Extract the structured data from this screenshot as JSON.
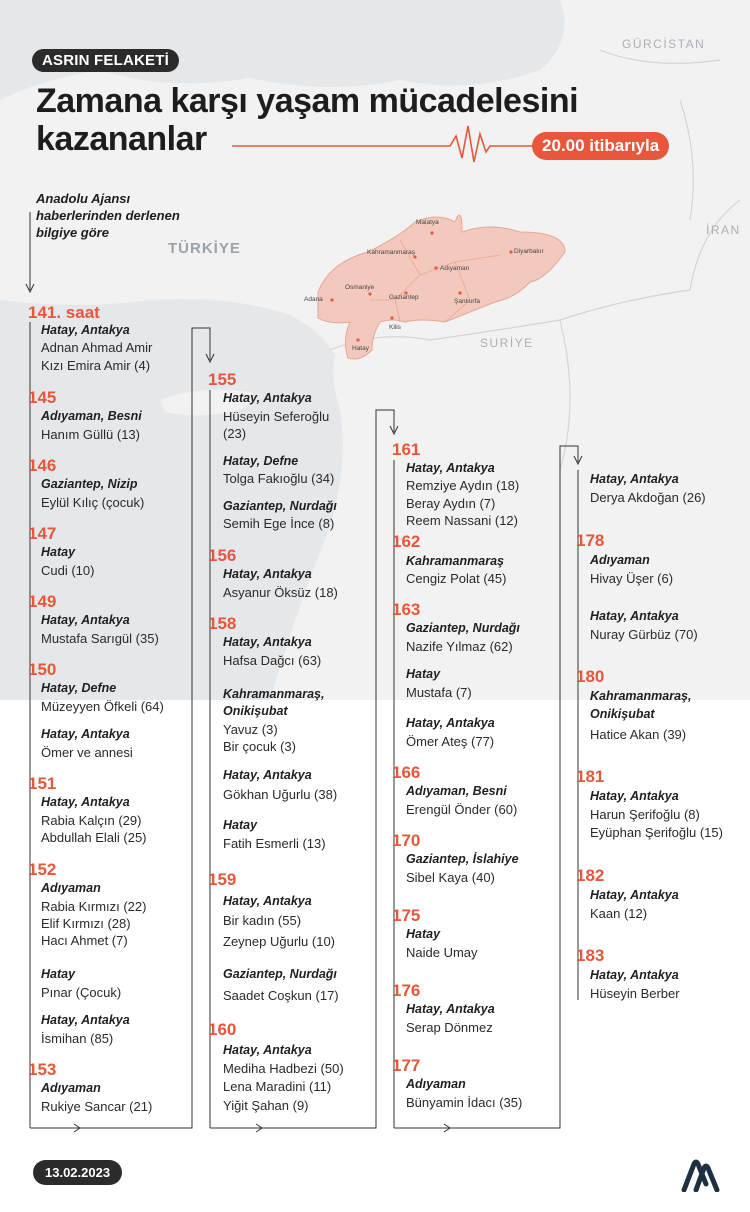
{
  "header": {
    "tag": "ASRIN FELAKETİ",
    "title_line1": "Zamana karşı yaşam mücadelesini",
    "title_line2": "kazananlar",
    "time_badge": "20.00 itibarıyla",
    "source_note": "Anadolu Ajansı haberlerinden derlenen bilgiye göre"
  },
  "map": {
    "countries": {
      "turkiye": "TÜRKİYE",
      "suriye": "SURİYE",
      "gurcistan": "GÜRCİSTAN",
      "iran": "İRAN"
    },
    "cities": [
      "Malatya",
      "Kahramanmaraş",
      "Diyarbakır",
      "Adıyaman",
      "Osmaniye",
      "Adana",
      "Gaziantep",
      "Şanlıurfa",
      "Kilis",
      "Hatay"
    ]
  },
  "timeline": {
    "c1": [
      {
        "hour": "141. saat",
        "groups": [
          {
            "loc": "Hatay, Antakya",
            "names": [
              "Adnan Ahmad Amir",
              "Kızı Emira Amir (4)"
            ]
          }
        ]
      },
      {
        "hour": "145",
        "groups": [
          {
            "loc": "Adıyaman, Besni",
            "names": [
              "Hanım Güllü (13)"
            ]
          }
        ]
      },
      {
        "hour": "146",
        "groups": [
          {
            "loc": "Gaziantep, Nizip",
            "names": [
              "Eylül Kılıç (çocuk)"
            ]
          }
        ]
      },
      {
        "hour": "147",
        "groups": [
          {
            "loc": "Hatay",
            "names": [
              "Cudi (10)"
            ]
          }
        ]
      },
      {
        "hour": "149",
        "groups": [
          {
            "loc": "Hatay, Antakya",
            "names": [
              "Mustafa Sarıgül (35)"
            ]
          }
        ]
      },
      {
        "hour": "150",
        "groups": [
          {
            "loc": "Hatay, Defne",
            "names": [
              "Müzeyyen Öfkeli (64)"
            ]
          },
          {
            "loc": "Hatay, Antakya",
            "names": [
              "Ömer ve annesi"
            ]
          }
        ]
      },
      {
        "hour": "151",
        "groups": [
          {
            "loc": "Hatay, Antakya",
            "names": [
              "Rabia Kalçın (29)",
              "Abdullah Elali (25)"
            ]
          }
        ]
      },
      {
        "hour": "152",
        "groups": [
          {
            "loc": "Adıyaman",
            "names": [
              "Rabia Kırmızı (22)",
              "Elif Kırmızı (28)",
              "Hacı Ahmet (7)"
            ]
          },
          {
            "loc": "Hatay",
            "names": [
              "Pınar (Çocuk)"
            ]
          },
          {
            "loc": "Hatay, Antakya",
            "names": [
              "İsmihan (85)"
            ]
          }
        ]
      },
      {
        "hour": "153",
        "groups": [
          {
            "loc": "Adıyaman",
            "names": [
              "Rukiye Sancar (21)"
            ]
          }
        ]
      }
    ],
    "c2": [
      {
        "hour": "155",
        "groups": [
          {
            "loc": "Hatay, Antakya",
            "names": [
              "Hüseyin Seferoğlu",
              "(23)"
            ]
          },
          {
            "loc": "Hatay, Defne",
            "names": [
              "Tolga Fakıoğlu (34)"
            ]
          },
          {
            "loc": "Gaziantep, Nurdağı",
            "names": [
              "Semih Ege İnce (8)"
            ]
          }
        ]
      },
      {
        "hour": "156",
        "groups": [
          {
            "loc": "Hatay, Antakya",
            "names": [
              "Asyanur Öksüz (18)"
            ]
          }
        ]
      },
      {
        "hour": "158",
        "groups": [
          {
            "loc": "Hatay, Antakya",
            "names": [
              "Hafsa Dağcı (63)"
            ]
          },
          {
            "loc": "Kahramanmaraş,",
            "loc2": "Onikişubat",
            "names": [
              "Yavuz (3)",
              "Bir çocuk (3)"
            ]
          },
          {
            "loc": "Hatay, Antakya",
            "names": [
              "Gökhan Uğurlu (38)"
            ]
          },
          {
            "loc": "Hatay",
            "names": [
              "Fatih Esmerli (13)"
            ]
          }
        ]
      },
      {
        "hour": "159",
        "groups": [
          {
            "loc": "Hatay, Antakya",
            "names": [
              "Bir kadın (55)",
              "Zeynep Uğurlu (10)"
            ]
          },
          {
            "loc": "Gaziantep, Nurdağı",
            "names": [
              "Saadet Coşkun (17)"
            ]
          }
        ]
      },
      {
        "hour": "160",
        "groups": [
          {
            "loc": "Hatay, Antakya",
            "names": [
              "Mediha Hadbezi (50)",
              "Lena Maradini (11)",
              "Yiğit Şahan (9)"
            ]
          }
        ]
      }
    ],
    "c3": [
      {
        "hour": "161",
        "groups": [
          {
            "loc": "Hatay, Antakya",
            "names": [
              "Remziye Aydın (18)",
              "Beray Aydın (7)",
              "Reem Nassani (12)"
            ]
          }
        ]
      },
      {
        "hour": "162",
        "groups": [
          {
            "loc": "Kahramanmaraş",
            "names": [
              "Cengiz Polat (45)"
            ]
          }
        ]
      },
      {
        "hour": "163",
        "groups": [
          {
            "loc": "Gaziantep, Nurdağı",
            "names": [
              "Nazife Yılmaz (62)"
            ]
          },
          {
            "loc": "Hatay",
            "names": [
              "Mustafa (7)"
            ]
          },
          {
            "loc": "Hatay, Antakya",
            "names": [
              "Ömer Ateş (77)"
            ]
          }
        ]
      },
      {
        "hour": "166",
        "groups": [
          {
            "loc": "Adıyaman, Besni",
            "names": [
              "Erengül Önder (60)"
            ]
          }
        ]
      },
      {
        "hour": "170",
        "groups": [
          {
            "loc": "Gaziantep, İslahiye",
            "names": [
              "Sibel Kaya (40)"
            ]
          }
        ]
      },
      {
        "hour": "175",
        "groups": [
          {
            "loc": "Hatay",
            "names": [
              "Naide Umay"
            ]
          }
        ]
      },
      {
        "hour": "176",
        "groups": [
          {
            "loc": "Hatay, Antakya",
            "names": [
              "Serap Dönmez"
            ]
          }
        ]
      },
      {
        "hour": "177",
        "groups": [
          {
            "loc": "Adıyaman",
            "names": [
              "Bünyamin İdacı (35)"
            ]
          }
        ]
      }
    ],
    "c4": [
      {
        "hour": "",
        "groups": [
          {
            "loc": "Hatay, Antakya",
            "names": [
              "Derya Akdoğan (26)"
            ]
          }
        ]
      },
      {
        "hour": "178",
        "groups": [
          {
            "loc": "Adıyaman",
            "names": [
              "Hivay Üşer (6)"
            ]
          },
          {
            "loc": "Hatay, Antakya",
            "names": [
              "Nuray Gürbüz (70)"
            ]
          }
        ]
      },
      {
        "hour": "180",
        "groups": [
          {
            "loc": "Kahramanmaraş,",
            "loc2": "Onikişubat",
            "names": [
              "Hatice Akan (39)"
            ]
          }
        ]
      },
      {
        "hour": "181",
        "groups": [
          {
            "loc": "Hatay, Antakya",
            "names": [
              "Harun Şerifoğlu (8)",
              "Eyüphan Şerifoğlu (15)"
            ]
          }
        ]
      },
      {
        "hour": "182",
        "groups": [
          {
            "loc": "Hatay, Antakya",
            "names": [
              "Kaan (12)"
            ]
          }
        ]
      },
      {
        "hour": "183",
        "groups": [
          {
            "loc": "Hatay, Antakya",
            "names": [
              "Hüseyin Berber"
            ]
          }
        ]
      }
    ]
  },
  "footer": {
    "date": "13.02.2023",
    "logo": "aa-logo-icon"
  },
  "colors": {
    "accent": "#e8563b",
    "dark": "#2b2b2b",
    "region": "#f3c9bd",
    "land": "#f1f1f1",
    "sea": "#e3e7ea"
  }
}
